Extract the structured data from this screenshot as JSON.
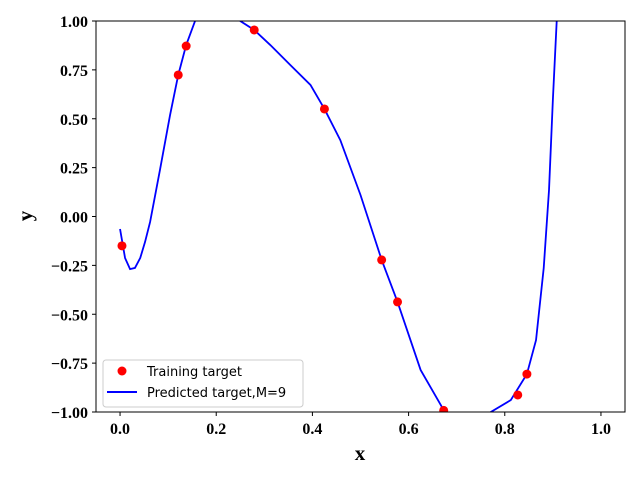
{
  "chart_data": {
    "type": "scatter",
    "title": "",
    "xlabel": "x",
    "ylabel": "y",
    "xlim": [
      -0.05,
      1.05
    ],
    "ylim": [
      -1.0,
      1.0
    ],
    "xticks": [
      "0.0",
      "0.2",
      "0.4",
      "0.6",
      "0.8",
      "1.0"
    ],
    "yticks": [
      "1.00",
      "0.75",
      "0.50",
      "0.25",
      "0.00",
      "−0.25",
      "−0.50",
      "−0.75",
      "−1.00"
    ],
    "grid": false,
    "legend_position": "lower-left",
    "series": [
      {
        "name": "Training target",
        "kind": "points",
        "color": "#ff0000",
        "x": [
          0.004,
          0.121,
          0.1375,
          0.279,
          0.425,
          0.544,
          0.577,
          0.673,
          0.827,
          0.846
        ],
        "y": [
          -0.15,
          0.724,
          0.872,
          0.954,
          0.55,
          -0.222,
          -0.437,
          -0.992,
          -0.913,
          -0.806
        ]
      },
      {
        "name": "Predicted target,M=9",
        "kind": "line",
        "color": "#0000ff",
        "x": [
          0,
          0.0104,
          0.0208,
          0.031,
          0.042,
          0.052,
          0.0625,
          0.083,
          0.104,
          0.121,
          0.1375,
          0.156,
          0.2,
          0.25,
          0.279,
          0.3125,
          0.354,
          0.396,
          0.425,
          0.458,
          0.5,
          0.544,
          0.577,
          0.625,
          0.673,
          0.72,
          0.771,
          0.8125,
          0.846,
          0.865,
          0.881,
          0.892,
          0.9,
          0.908,
          0.915
        ],
        "y": [
          -0.064,
          -0.212,
          -0.269,
          -0.263,
          -0.212,
          -0.13,
          -0.028,
          0.238,
          0.519,
          0.724,
          0.877,
          1.0,
          1.12,
          1.0,
          0.954,
          0.877,
          0.775,
          0.673,
          0.55,
          0.391,
          0.11,
          -0.222,
          -0.437,
          -0.785,
          -0.99,
          -1.1,
          -1.0,
          -0.939,
          -0.806,
          -0.632,
          -0.263,
          0.136,
          0.596,
          1.0,
          1.3
        ]
      }
    ]
  }
}
